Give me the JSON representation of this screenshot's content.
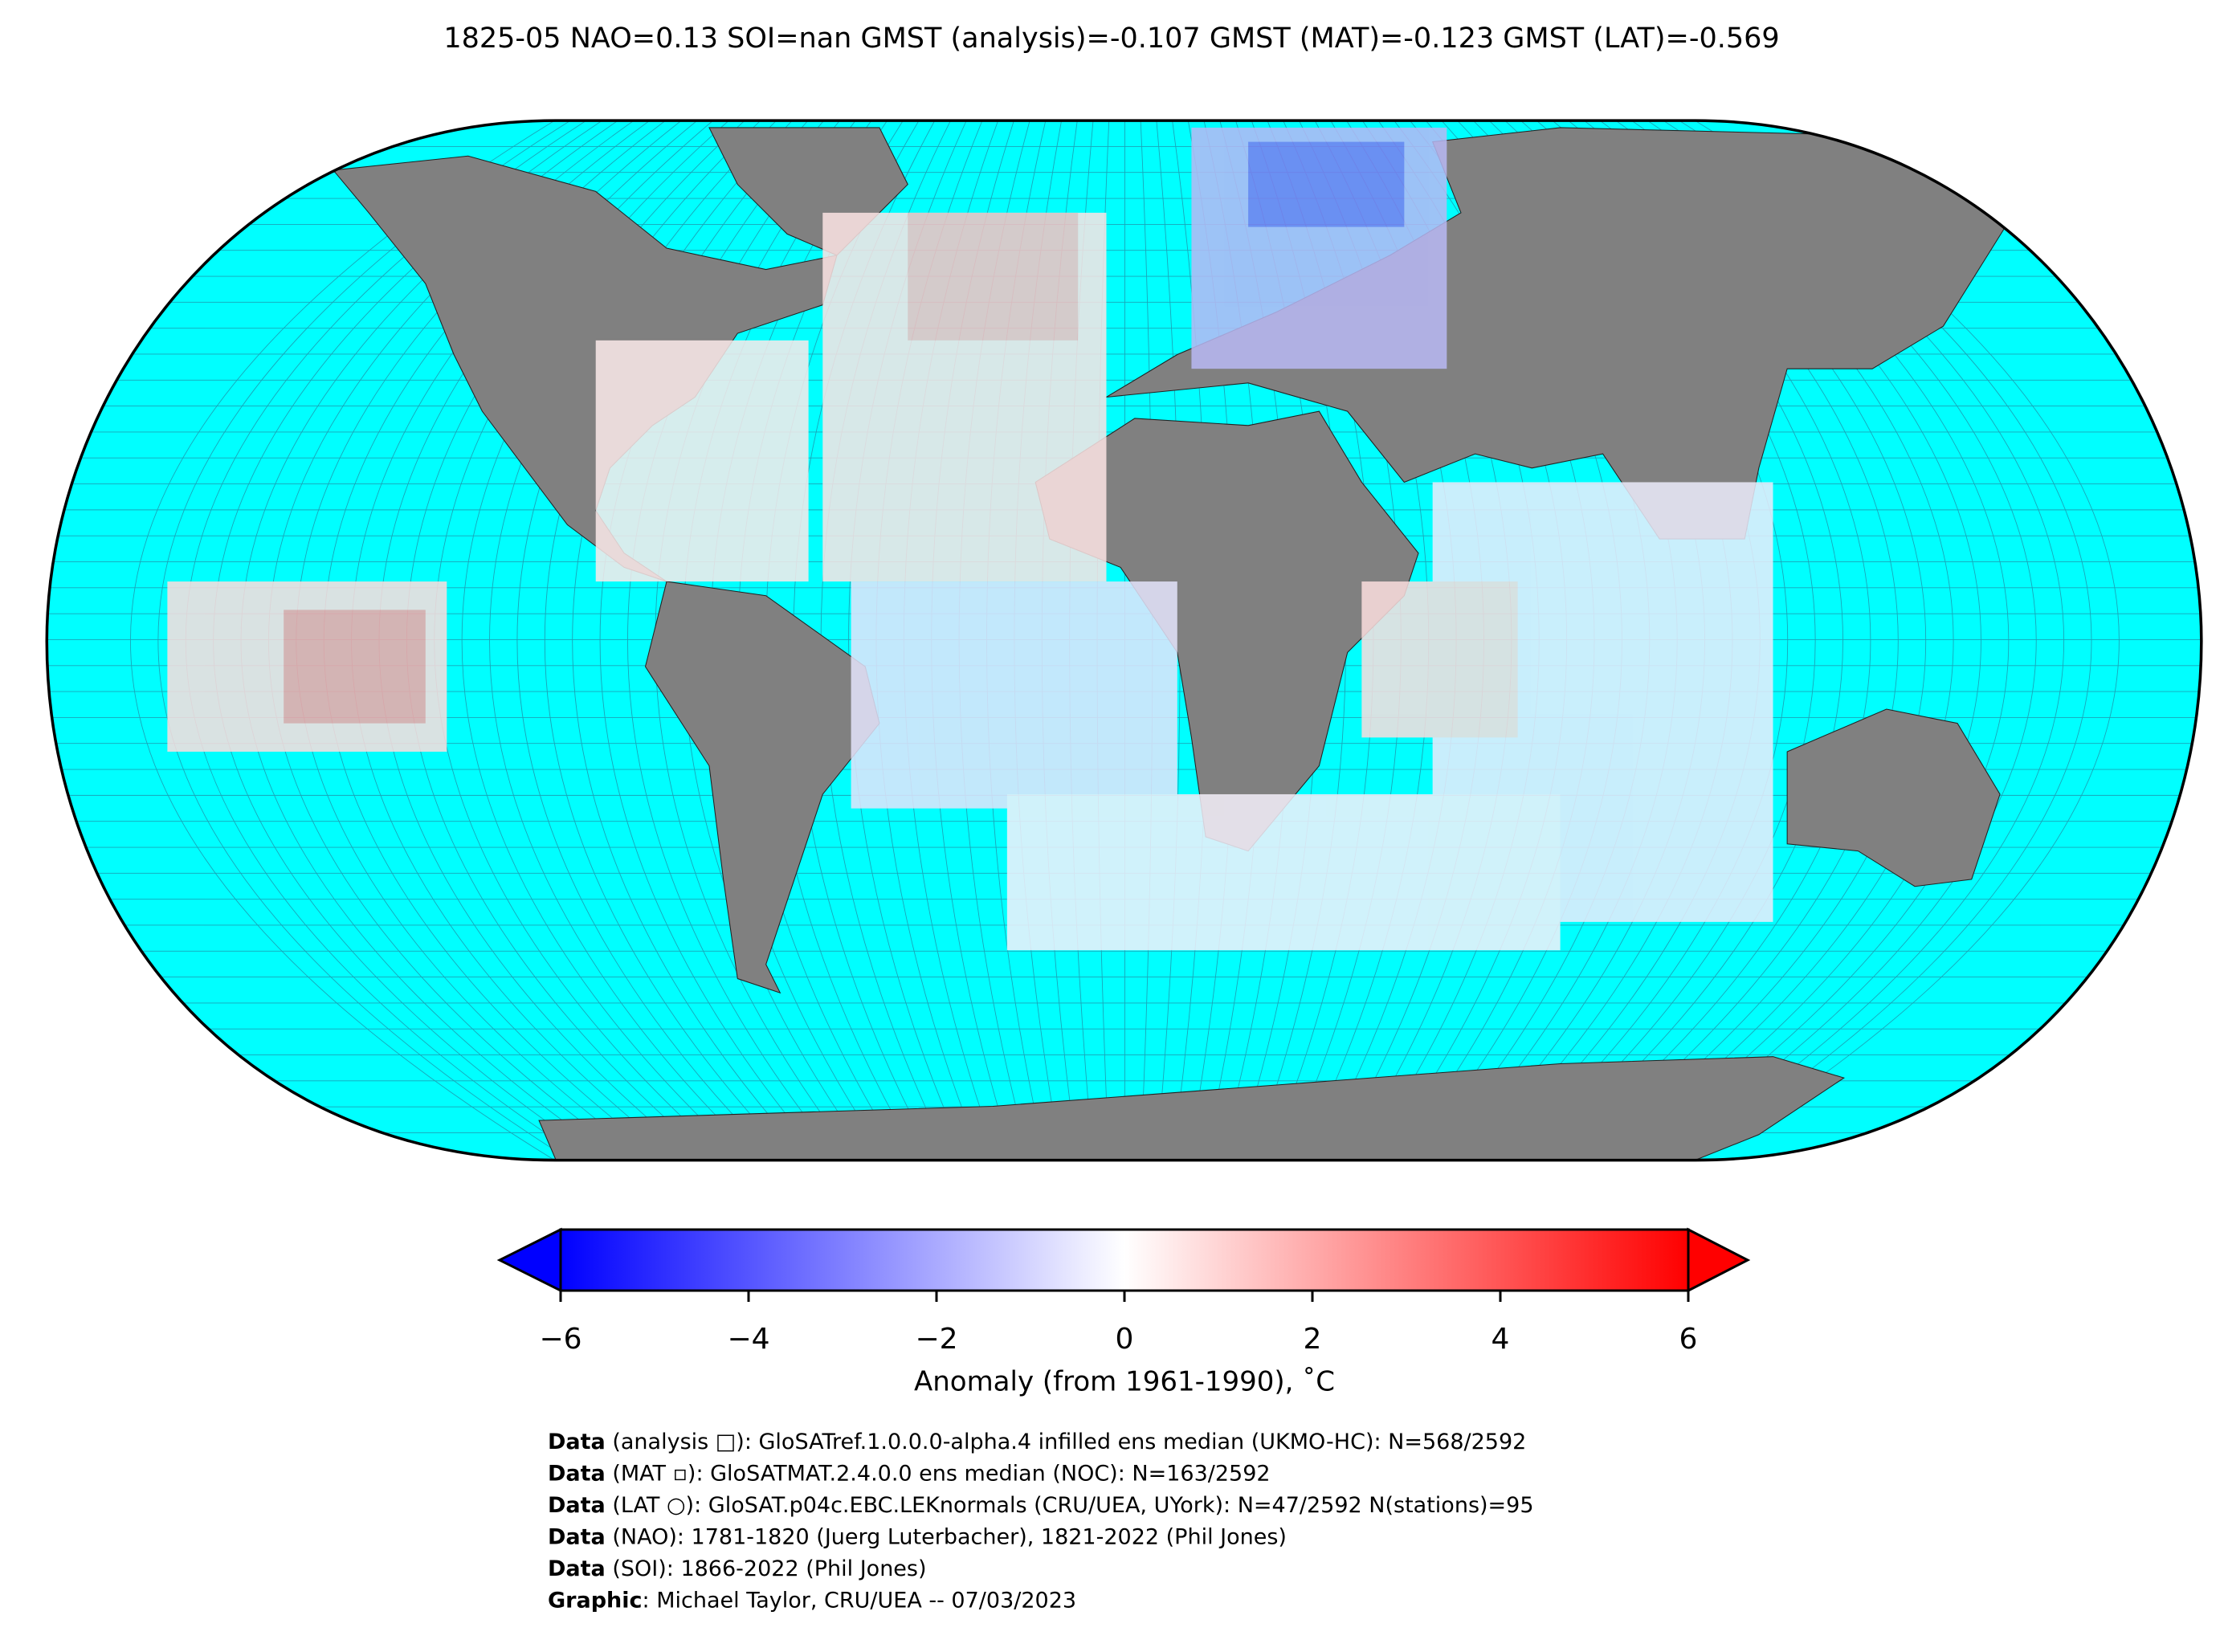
{
  "title": "1825-05 NAO=0.13 SOI=nan GMST (analysis)=-0.107 GMST (MAT)=-0.123 GMST (LAT)=-0.569",
  "colorbar": {
    "label": "Anomaly (from 1961-1990), ˚C",
    "range": [
      -6,
      6
    ],
    "ticks": [
      {
        "value": -6,
        "label": "−6"
      },
      {
        "value": -4,
        "label": "−4"
      },
      {
        "value": -2,
        "label": "−2"
      },
      0,
      2,
      4,
      6
    ],
    "colors": [
      "#0000ff",
      "#ffffff",
      "#ff0000"
    ]
  },
  "credits": [
    {
      "bold": "Data",
      "text": " (analysis □): GloSATref.1.0.0.0-alpha.4 infilled ens median (UKMO-HC): N=568/2592"
    },
    {
      "bold": "Data",
      "text": " (MAT ▫): GloSATMAT.2.4.0.0 ens median (NOC): N=163/2592"
    },
    {
      "bold": "Data",
      "text": " (LAT ○): GloSAT.p04c.EBC.LEKnormals (CRU/UEA, UYork): N=47/2592 N(stations)=95"
    },
    {
      "bold": "Data",
      "text": " (NAO): 1781-1820 (Juerg Luterbacher), 1821-2022 (Phil Jones)"
    },
    {
      "bold": "Data",
      "text": " (SOI): 1866-2022 (Phil Jones)"
    },
    {
      "bold": "Graphic",
      "text": ": Michael Taylor, CRU/UEA -- 07/03/2023"
    }
  ]
}
